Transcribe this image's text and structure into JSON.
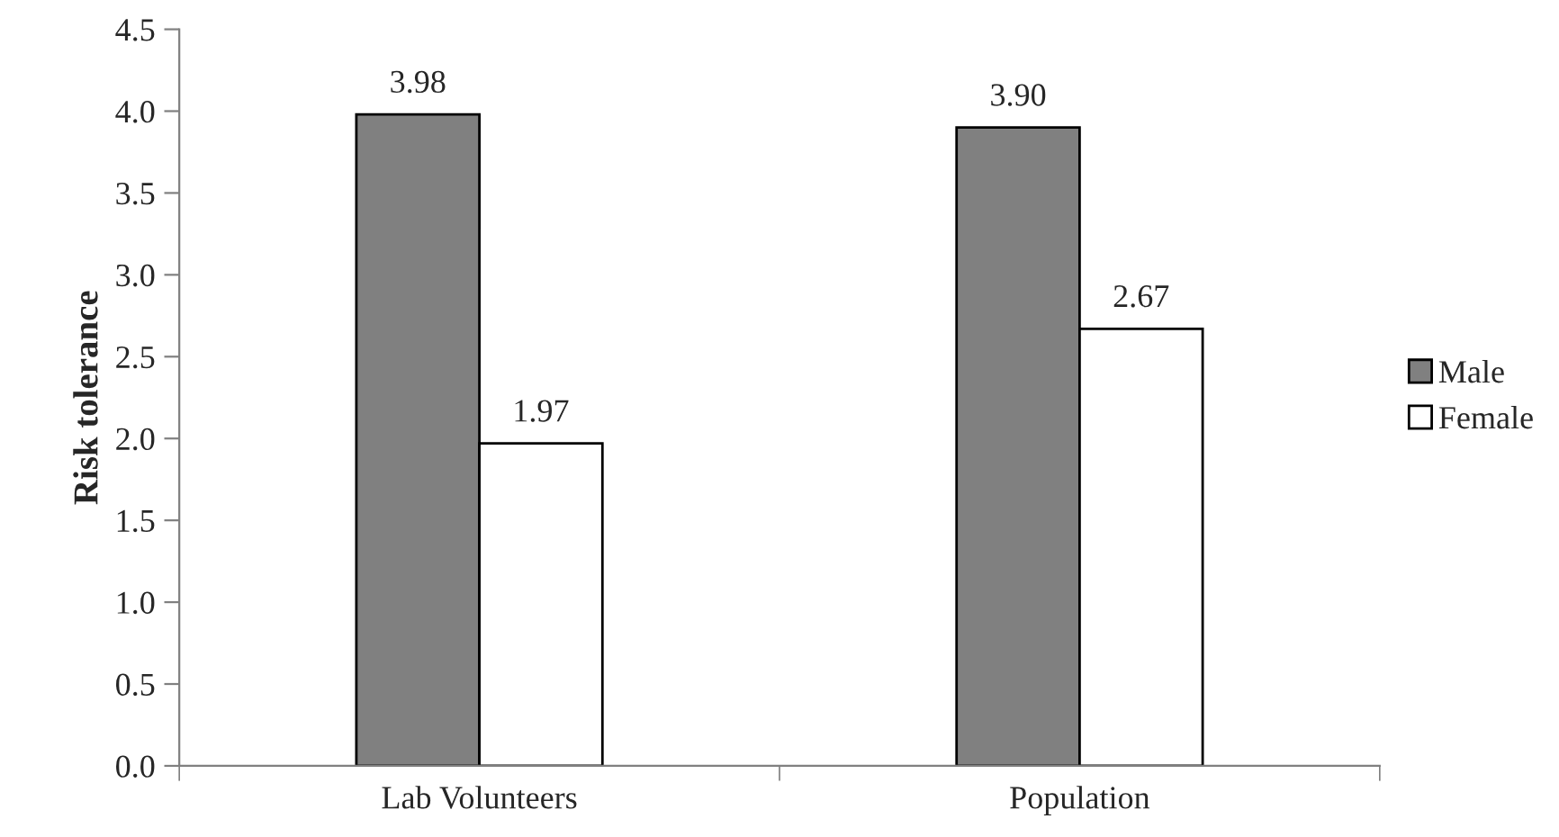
{
  "chart_data": {
    "type": "bar",
    "ylabel": "Risk tolerance",
    "categories": [
      "Lab Volunteers",
      "Population"
    ],
    "series": [
      {
        "name": "Male",
        "color": "#808080",
        "values": [
          3.98,
          3.9
        ],
        "value_labels": [
          "3.98",
          "3.90"
        ]
      },
      {
        "name": "Female",
        "color": "#ffffff",
        "values": [
          1.97,
          2.67
        ],
        "value_labels": [
          "1.97",
          "2.67"
        ]
      }
    ],
    "ylim": [
      0,
      4.5
    ],
    "yticks": [
      {
        "value": 0,
        "label": "0.0"
      },
      {
        "value": 0.5,
        "label": "0.5"
      },
      {
        "value": 1,
        "label": "1.0"
      },
      {
        "value": 1.5,
        "label": "1.5"
      },
      {
        "value": 2,
        "label": "2.0"
      },
      {
        "value": 2.5,
        "label": "2.5"
      },
      {
        "value": 3,
        "label": "3.0"
      },
      {
        "value": 3.5,
        "label": "3.5"
      },
      {
        "value": 4,
        "label": "4.0"
      },
      {
        "value": 4.5,
        "label": "4.5"
      }
    ],
    "grid": false,
    "legend": "right"
  }
}
